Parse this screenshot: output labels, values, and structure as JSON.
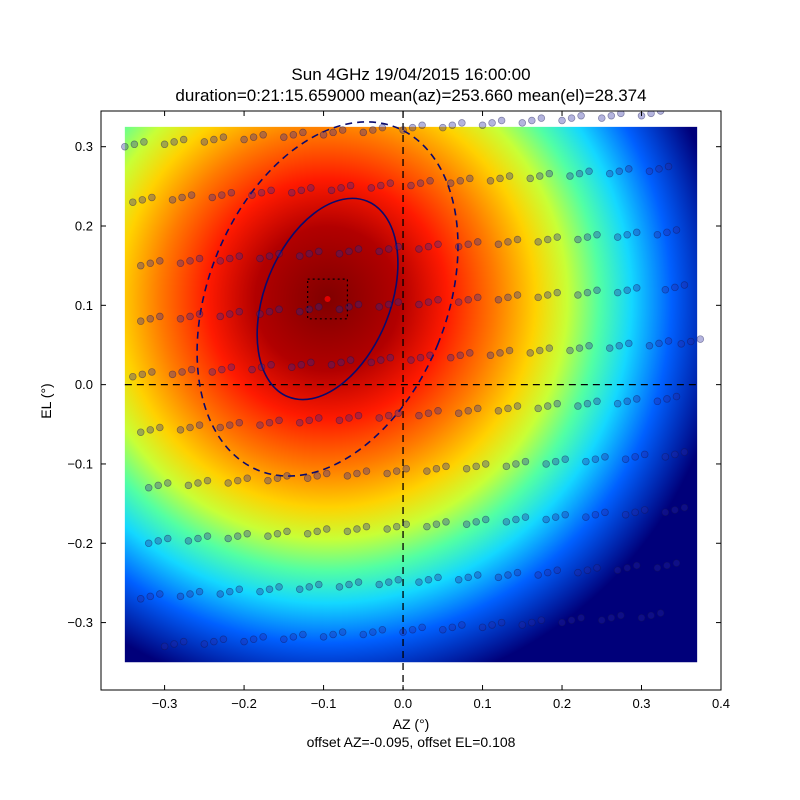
{
  "chart_data": {
    "type": "heatmap",
    "title": "Sun 4GHz 19/04/2015 16:00:00",
    "subtitle": "duration=0:21:15.659000 mean(az)=253.660 mean(el)=28.374",
    "xlabel": "AZ (°)",
    "ylabel": "EL (°)",
    "footer": "offset AZ=-0.095, offset EL=0.108",
    "xlim": [
      -0.38,
      0.4
    ],
    "ylim": [
      -0.385,
      0.345
    ],
    "x_ticks": [
      -0.3,
      -0.2,
      -0.1,
      0.0,
      0.1,
      0.2,
      0.3,
      0.4
    ],
    "x_tick_labels": [
      "−0.3",
      "−0.2",
      "−0.1",
      "0.0",
      "0.1",
      "0.2",
      "0.3",
      "0.4"
    ],
    "y_ticks": [
      0.3,
      0.2,
      0.1,
      0.0,
      -0.1,
      -0.2,
      -0.3
    ],
    "y_tick_labels": [
      "0.3",
      "0.2",
      "0.1",
      "0.0",
      "−0.1",
      "−0.2",
      "−0.3"
    ],
    "heatmap_extent": {
      "x": [
        -0.35,
        0.37
      ],
      "y": [
        -0.35,
        0.325
      ]
    },
    "heatmap_peak": {
      "x": -0.095,
      "y": 0.108
    },
    "colormap": "jet",
    "grid": false,
    "crosshair": {
      "x": 0.0,
      "y": 0.0
    },
    "fit_center": {
      "x": -0.095,
      "y": 0.108
    },
    "center_box": {
      "x": [
        -0.12,
        -0.07
      ],
      "y": [
        0.083,
        0.133
      ]
    },
    "inner_ellipse": {
      "cx": -0.095,
      "cy": 0.108,
      "rx": 0.079,
      "ry": 0.133,
      "angle_deg": 22
    },
    "outer_ellipse": {
      "cx": -0.095,
      "cy": 0.108,
      "rx": 0.15,
      "ry": 0.233,
      "angle_deg": 22
    },
    "scan_lines": [
      {
        "y0": 0.3,
        "x": [
          -0.35,
          -0.3,
          -0.25,
          -0.2,
          -0.15,
          -0.1,
          -0.05,
          0.0,
          0.05,
          0.1,
          0.15,
          0.2,
          0.25,
          0.3
        ],
        "slope": 0.12
      },
      {
        "y0": 0.23,
        "x": [
          -0.34,
          -0.29,
          -0.24,
          -0.19,
          -0.14,
          -0.09,
          -0.04,
          0.01,
          0.06,
          0.11,
          0.16,
          0.21,
          0.26,
          0.31
        ],
        "slope": 0.12
      },
      {
        "y0": 0.15,
        "x": [
          -0.33,
          -0.28,
          -0.23,
          -0.18,
          -0.13,
          -0.08,
          -0.03,
          0.02,
          0.07,
          0.12,
          0.17,
          0.22,
          0.27,
          0.32
        ],
        "slope": 0.12
      },
      {
        "y0": 0.08,
        "x": [
          -0.33,
          -0.28,
          -0.23,
          -0.18,
          -0.13,
          -0.08,
          -0.03,
          0.02,
          0.07,
          0.12,
          0.17,
          0.22,
          0.27,
          0.33
        ],
        "slope": 0.12
      },
      {
        "y0": 0.01,
        "x": [
          -0.34,
          -0.29,
          -0.24,
          -0.19,
          -0.14,
          -0.09,
          -0.04,
          0.01,
          0.06,
          0.11,
          0.16,
          0.21,
          0.26,
          0.31,
          0.35
        ],
        "slope": 0.12
      },
      {
        "y0": -0.06,
        "x": [
          -0.33,
          -0.28,
          -0.23,
          -0.18,
          -0.13,
          -0.08,
          -0.03,
          0.02,
          0.07,
          0.12,
          0.17,
          0.22,
          0.27,
          0.32
        ],
        "slope": 0.12
      },
      {
        "y0": -0.13,
        "x": [
          -0.32,
          -0.27,
          -0.22,
          -0.17,
          -0.12,
          -0.07,
          -0.02,
          0.03,
          0.08,
          0.13,
          0.18,
          0.23,
          0.28,
          0.33
        ],
        "slope": 0.12
      },
      {
        "y0": -0.2,
        "x": [
          -0.32,
          -0.27,
          -0.22,
          -0.17,
          -0.12,
          -0.07,
          -0.02,
          0.03,
          0.08,
          0.13,
          0.18,
          0.23,
          0.28,
          0.33
        ],
        "slope": 0.12
      },
      {
        "y0": -0.27,
        "x": [
          -0.33,
          -0.28,
          -0.23,
          -0.18,
          -0.13,
          -0.08,
          -0.03,
          0.02,
          0.07,
          0.12,
          0.17,
          0.22,
          0.27,
          0.32
        ],
        "slope": 0.12
      },
      {
        "y0": -0.33,
        "x": [
          -0.3,
          -0.25,
          -0.2,
          -0.15,
          -0.1,
          -0.05,
          0.0,
          0.05,
          0.1,
          0.15,
          0.2,
          0.25,
          0.3
        ],
        "slope": 0.12
      }
    ]
  }
}
